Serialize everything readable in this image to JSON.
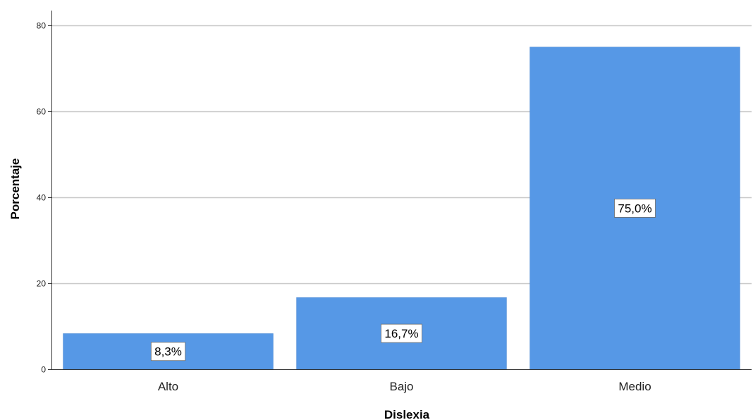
{
  "chart_data": {
    "type": "bar",
    "categories": [
      "Alto",
      "Bajo",
      "Medio"
    ],
    "values": [
      8.3,
      16.7,
      75.0
    ],
    "data_labels": [
      "8,3%",
      "16,7%",
      "75,0%"
    ],
    "xlabel": "Dislexia",
    "ylabel": "Porcentaje",
    "ylim": [
      0,
      80
    ],
    "yticks": [
      0,
      20,
      40,
      60,
      80
    ],
    "grid": true,
    "legend": "none"
  },
  "colors": {
    "bar": "#5698E6",
    "grid": "#C8C8C8",
    "axis": "#333333"
  }
}
